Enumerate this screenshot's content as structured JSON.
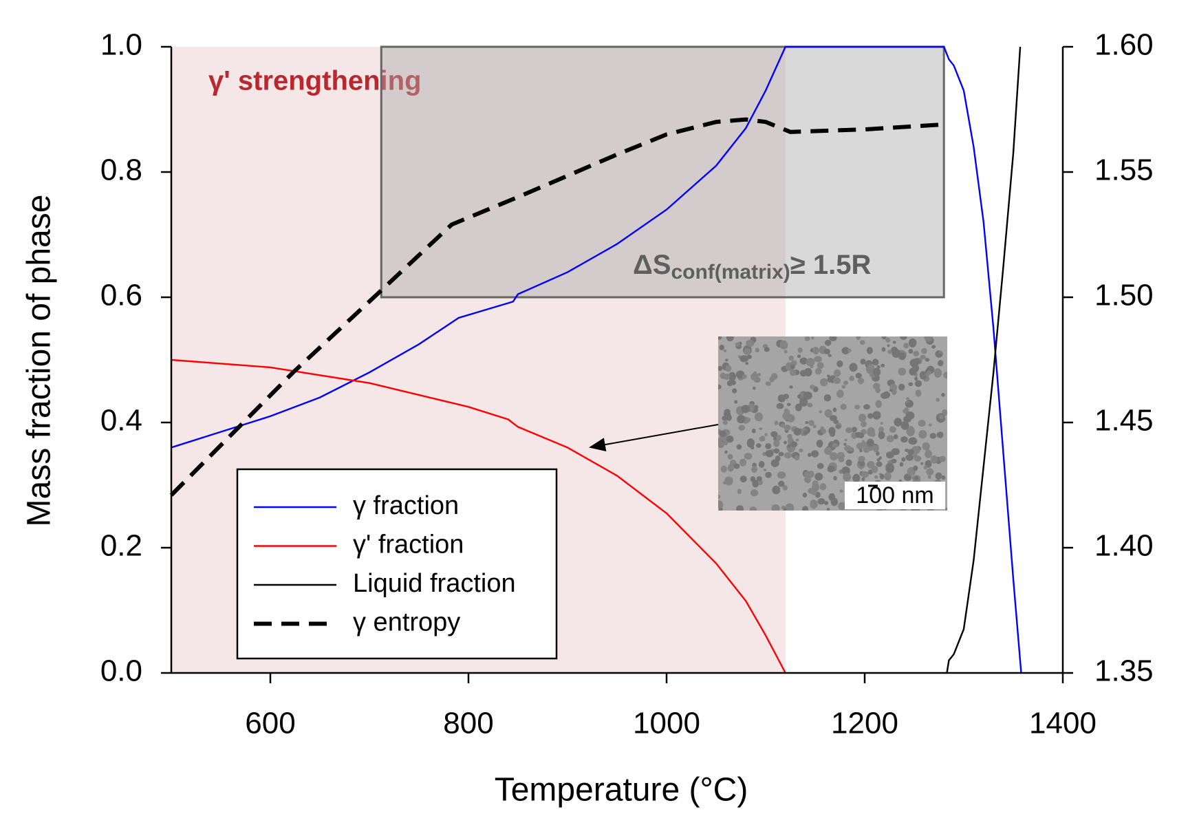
{
  "chart_data": {
    "type": "line",
    "x_label": "Temperature (°C)",
    "y_label": "Mass fraction of phase",
    "xlim": [
      500,
      1400
    ],
    "xticks": [
      600,
      800,
      1000,
      1200,
      1400
    ],
    "ylim": [
      0,
      1
    ],
    "yticks": [
      {
        "value": 0,
        "label": "0.0"
      },
      0.2,
      0.4,
      0.6,
      0.8,
      {
        "value": 1,
        "label": "1.0"
      }
    ],
    "y2lim": [
      1.35,
      1.6
    ],
    "y2ticks": [
      1.35,
      {
        "value": 1.4,
        "label": "1.40"
      },
      1.45,
      {
        "value": 1.5,
        "label": "1.50"
      },
      1.55,
      {
        "value": 1.6,
        "label": "1.60"
      }
    ],
    "grid": false,
    "legend": "lower left",
    "series": [
      {
        "name": "γ fraction",
        "color": "#0000ff",
        "style": "solid",
        "x": [
          500,
          550,
          600,
          650,
          700,
          750,
          790,
          845,
          850,
          900,
          950,
          1000,
          1050,
          1080,
          1100,
          1120,
          1200,
          1280,
          1285,
          1290,
          1300,
          1310,
          1320,
          1330,
          1340,
          1350,
          1358
        ],
        "values": [
          0.36,
          0.385,
          0.41,
          0.44,
          0.48,
          0.525,
          0.567,
          0.593,
          0.605,
          0.64,
          0.685,
          0.74,
          0.81,
          0.87,
          0.93,
          1.0,
          1.0,
          1.0,
          0.98,
          0.97,
          0.93,
          0.84,
          0.72,
          0.55,
          0.35,
          0.15,
          0.0
        ]
      },
      {
        "name": "γ' fraction",
        "color": "#ff0000",
        "style": "solid",
        "x": [
          500,
          600,
          700,
          800,
          840,
          850,
          900,
          950,
          1000,
          1050,
          1080,
          1100,
          1120
        ],
        "values": [
          0.5,
          0.488,
          0.463,
          0.425,
          0.405,
          0.393,
          0.36,
          0.315,
          0.255,
          0.175,
          0.115,
          0.06,
          0.0
        ]
      },
      {
        "name": "Liquid fraction",
        "color": "#000000",
        "style": "solid",
        "x": [
          1283,
          1285,
          1290,
          1300,
          1310,
          1320,
          1330,
          1340,
          1350,
          1357
        ],
        "values": [
          0.0,
          0.02,
          0.03,
          0.07,
          0.18,
          0.33,
          0.48,
          0.65,
          0.83,
          1.0
        ]
      },
      {
        "name": "γ entropy",
        "color": "#000000",
        "style": "dashed",
        "axis": "y2",
        "x": [
          500,
          623,
          710,
          783,
          850,
          950,
          1000,
          1050,
          1080,
          1100,
          1125,
          1200,
          1280
        ],
        "values": [
          1.421,
          1.47,
          1.502,
          1.529,
          1.54,
          1.557,
          1.565,
          1.57,
          1.571,
          1.57,
          1.566,
          1.567,
          1.569
        ]
      }
    ],
    "regions": [
      {
        "x": [
          500,
          1120
        ],
        "y": [
          0,
          1
        ],
        "color": "#f5e6e7",
        "label": "γ' strengthening",
        "label_color": "#b8292f"
      },
      {
        "x": [
          712,
          1280
        ],
        "y": [
          0.6,
          1
        ],
        "color": "rgba(170,170,170,0.45)",
        "border": "#666666",
        "label_parts": [
          "ΔS",
          "conf(matrix)",
          "≥ 1.5R"
        ],
        "label_color": "#5f5f5f"
      }
    ],
    "inset_label": "100 nm"
  }
}
